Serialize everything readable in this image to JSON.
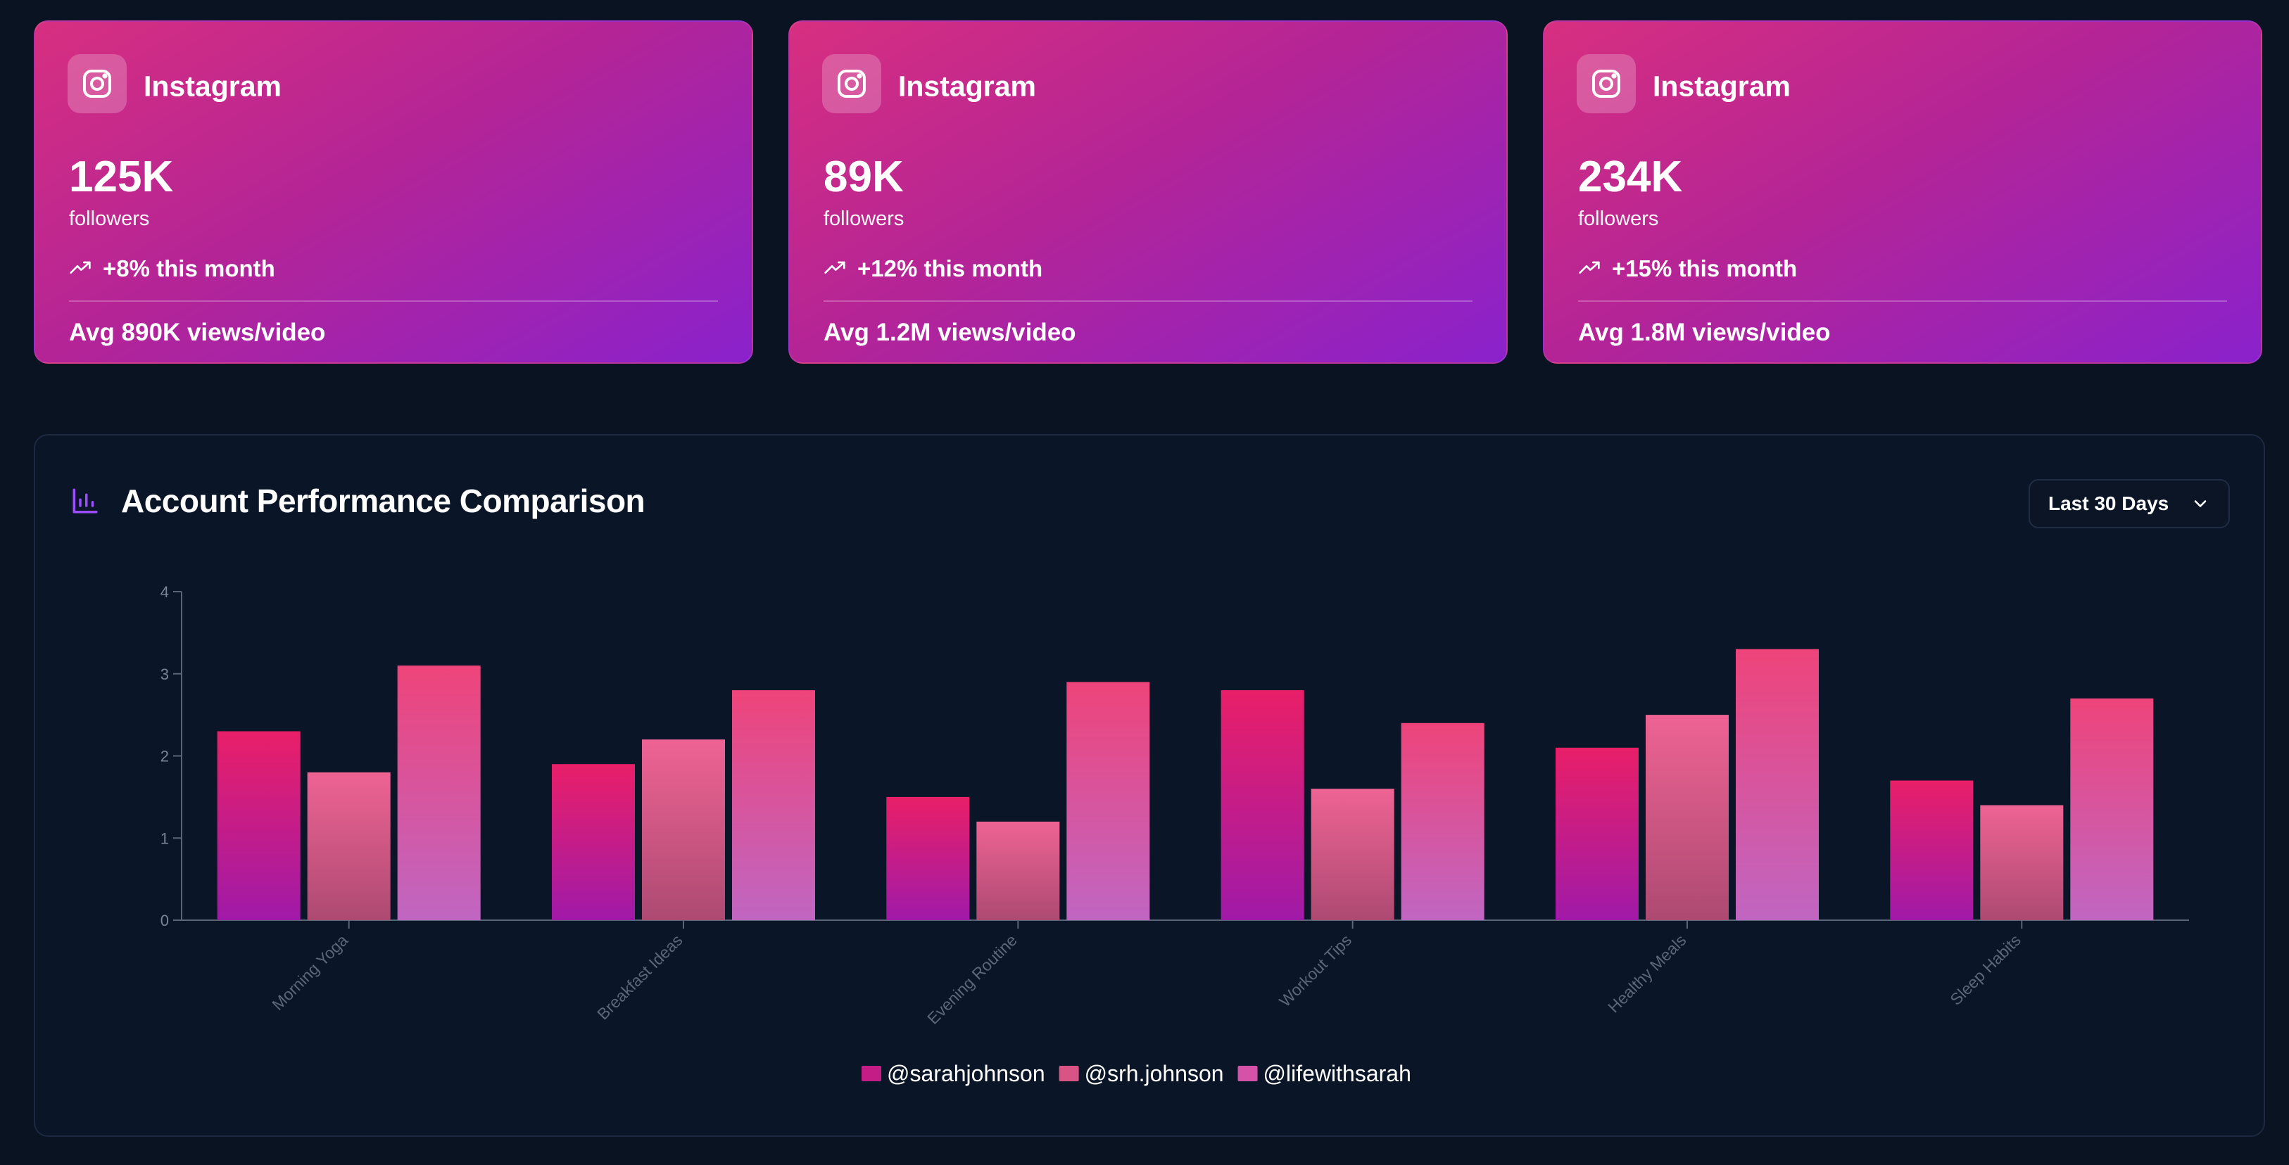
{
  "accounts": [
    {
      "platform": "Instagram",
      "icon": "instagram-icon",
      "followers": "125K",
      "followers_label": "followers",
      "growth": "+8% this month",
      "avg_views": "Avg 890K views/video"
    },
    {
      "platform": "Instagram",
      "icon": "instagram-icon",
      "followers": "89K",
      "followers_label": "followers",
      "growth": "+12% this month",
      "avg_views": "Avg 1.2M views/video"
    },
    {
      "platform": "Instagram",
      "icon": "instagram-icon",
      "followers": "234K",
      "followers_label": "followers",
      "growth": "+15% this month",
      "avg_views": "Avg 1.8M views/video"
    }
  ],
  "comparison": {
    "title": "Account Performance Comparison",
    "title_icon": "bar-chart-icon",
    "range": "Last 30 Days"
  },
  "colors": {
    "card_gradient_start": "#d72f80",
    "card_gradient_end": "#8a22cc",
    "accent_purple": "#9b4dff",
    "page_bg": "#0a1322"
  },
  "chart_data": {
    "type": "bar",
    "categories": [
      "Morning Yoga",
      "Breakfast Ideas",
      "Evening Routine",
      "Workout Tips",
      "Healthy Meals",
      "Sleep Habits"
    ],
    "series": [
      {
        "name": "@sarahjohnson",
        "values": [
          2.3,
          1.9,
          1.5,
          2.8,
          2.1,
          1.7
        ],
        "color_top": "#e91f68",
        "color_bottom": "#a01aa8"
      },
      {
        "name": "@srh.johnson",
        "values": [
          1.8,
          2.2,
          1.2,
          1.6,
          2.5,
          1.4
        ],
        "color_top": "#ee6393",
        "color_bottom": "#ad4a72"
      },
      {
        "name": "@lifewithsarah",
        "values": [
          3.1,
          2.8,
          2.9,
          2.4,
          3.3,
          2.7
        ],
        "color_top": "#ee447a",
        "color_bottom": "#c066c2"
      }
    ],
    "yticks": [
      "0",
      "1",
      "2",
      "3",
      "4"
    ],
    "ylim": [
      0,
      4
    ],
    "legend": "bottom-center",
    "grid": false
  }
}
